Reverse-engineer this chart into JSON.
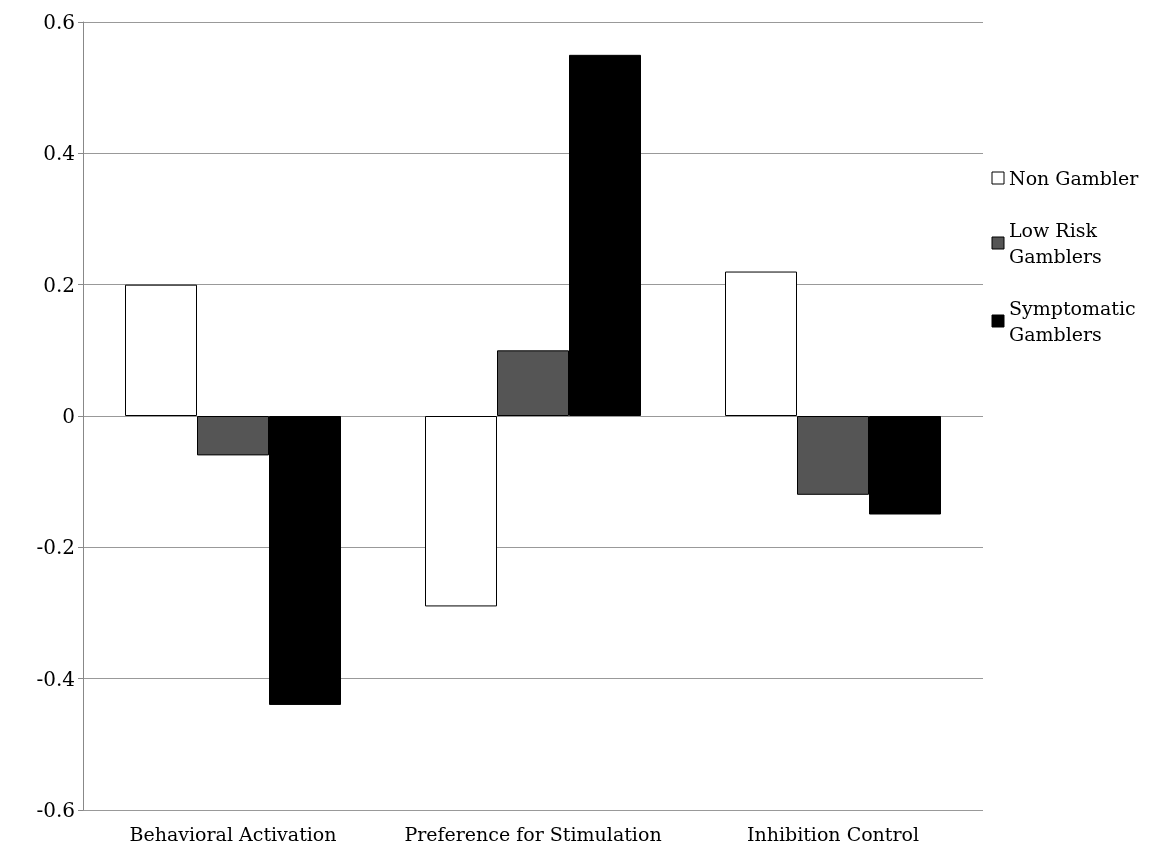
{
  "chart_data": {
    "type": "bar",
    "categories": [
      "Behavioral Activation",
      "Preference for Stimulation",
      "Inhibition Control"
    ],
    "series": [
      {
        "name": "Non Gambler",
        "color": "#ffffff",
        "values": [
          0.2,
          -0.29,
          0.22
        ]
      },
      {
        "name": "Low Risk Gamblers",
        "color": "#555555",
        "values": [
          -0.06,
          0.1,
          -0.12
        ]
      },
      {
        "name": "Symptomatic Gamblers",
        "color": "#000000",
        "values": [
          -0.44,
          0.55,
          -0.15
        ]
      }
    ],
    "ylim": [
      -0.6,
      0.6
    ],
    "yticks": [
      -0.6,
      -0.4,
      -0.2,
      0,
      0.2,
      0.4,
      0.6
    ],
    "grid": "y",
    "legend": "right"
  }
}
